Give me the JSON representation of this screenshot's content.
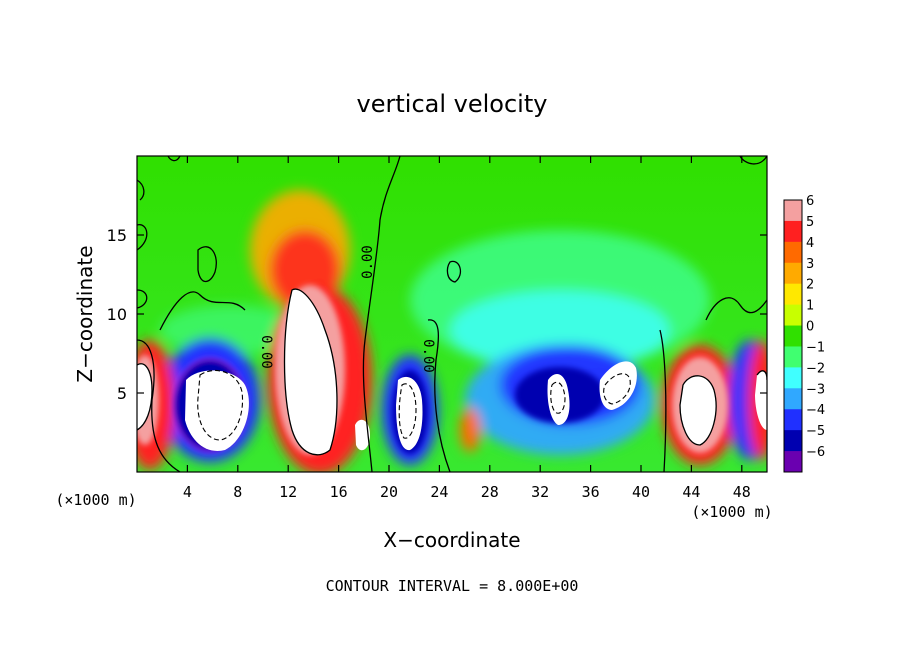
{
  "chart_data": {
    "type": "heatmap",
    "title": "vertical velocity",
    "xlabel": "X−coordinate",
    "ylabel": "Z−coordinate",
    "x_unit_left": "(×1000 m)",
    "x_unit_right": "(×1000 m)",
    "xlim": [
      0,
      50
    ],
    "ylim": [
      0,
      20
    ],
    "x_ticks": [
      4,
      8,
      12,
      16,
      20,
      24,
      28,
      32,
      36,
      40,
      44,
      48
    ],
    "y_ticks": [
      5,
      10,
      15
    ],
    "colorbar": {
      "ticks": [
        6,
        5,
        4,
        3,
        2,
        1,
        0,
        -1,
        -2,
        -3,
        -4,
        -5,
        -6
      ],
      "tick_labels": [
        "6",
        "5",
        "4",
        "3",
        "2",
        "1",
        "0",
        "−1",
        "−2",
        "−3",
        "−4",
        "−5",
        "−6"
      ],
      "colors": [
        "#f4a0a0",
        "#ff2020",
        "#ff6a00",
        "#ffaa00",
        "#ffe800",
        "#c8ff00",
        "#30e000",
        "#40ff70",
        "#40ffff",
        "#30a8ff",
        "#2030ff",
        "#0000b0",
        "#6a00b0"
      ]
    },
    "contour_labels": [
      "0.00",
      "0.00",
      "0.00"
    ],
    "footer": "CONTOUR INTERVAL = 8.000E+00",
    "features": [
      {
        "kind": "updraft_core",
        "x": 1,
        "z": 5,
        "w": 6
      },
      {
        "kind": "downdraft_core",
        "x": 7.5,
        "z": 5,
        "w": -6
      },
      {
        "kind": "updraft_core",
        "x": 14,
        "z": 7.5,
        "w": 6
      },
      {
        "kind": "updraft_core",
        "x": 17,
        "z": 2.5,
        "w": 6
      },
      {
        "kind": "downdraft_core",
        "x": 21.5,
        "z": 4,
        "w": -6
      },
      {
        "kind": "updraft_core",
        "x": 26.5,
        "z": 2.5,
        "w": 5
      },
      {
        "kind": "downdraft_core",
        "x": 33,
        "z": 5,
        "w": -6
      },
      {
        "kind": "downdraft_core",
        "x": 38,
        "z": 6,
        "w": -6
      },
      {
        "kind": "updraft_core",
        "x": 44.5,
        "z": 4,
        "w": 6
      },
      {
        "kind": "downdraft_core",
        "x": 47.5,
        "z": 3,
        "w": -5
      },
      {
        "kind": "updraft_core",
        "x": 49.5,
        "z": 4.5,
        "w": 6
      }
    ]
  }
}
